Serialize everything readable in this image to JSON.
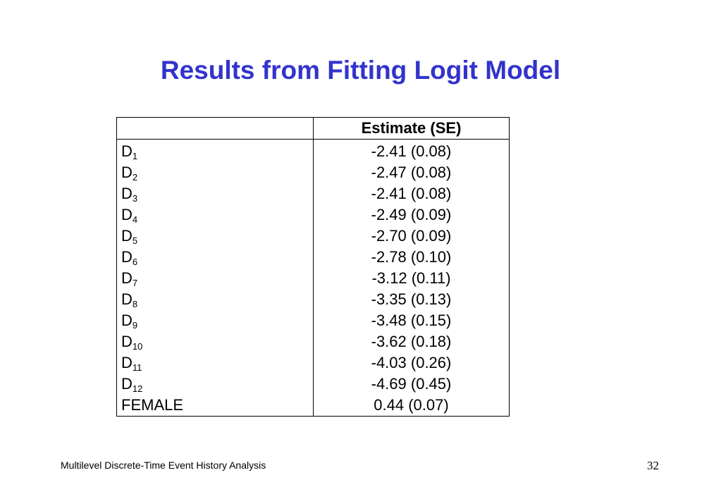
{
  "title": "Results from Fitting Logit Model",
  "table": {
    "header": {
      "label": "",
      "estimate": "Estimate (SE)"
    },
    "rows": [
      {
        "label": "D",
        "sub": "1",
        "estimate": "-2.41 (0.08)"
      },
      {
        "label": "D",
        "sub": "2",
        "estimate": "-2.47 (0.08)"
      },
      {
        "label": "D",
        "sub": "3",
        "estimate": "-2.41 (0.08)"
      },
      {
        "label": "D",
        "sub": "4",
        "estimate": "-2.49 (0.09)"
      },
      {
        "label": "D",
        "sub": "5",
        "estimate": "-2.70 (0.09)"
      },
      {
        "label": "D",
        "sub": "6",
        "estimate": "-2.78 (0.10)"
      },
      {
        "label": "D",
        "sub": "7",
        "estimate": "-3.12 (0.11)"
      },
      {
        "label": "D",
        "sub": "8",
        "estimate": "-3.35 (0.13)"
      },
      {
        "label": "D",
        "sub": "9",
        "estimate": "-3.48 (0.15)"
      },
      {
        "label": "D",
        "sub": "10",
        "estimate": "-3.62 (0.18)"
      },
      {
        "label": "D",
        "sub": "11",
        "estimate": "-4.03 (0.26)"
      },
      {
        "label": "D",
        "sub": "12",
        "estimate": "-4.69 (0.45)"
      },
      {
        "label": "FEMALE",
        "sub": "",
        "estimate": "0.44 (0.07)"
      }
    ]
  },
  "footer": {
    "text": "Multilevel Discrete-Time Event History Analysis",
    "page_number": "32"
  },
  "colors": {
    "title": "#3333cc"
  }
}
